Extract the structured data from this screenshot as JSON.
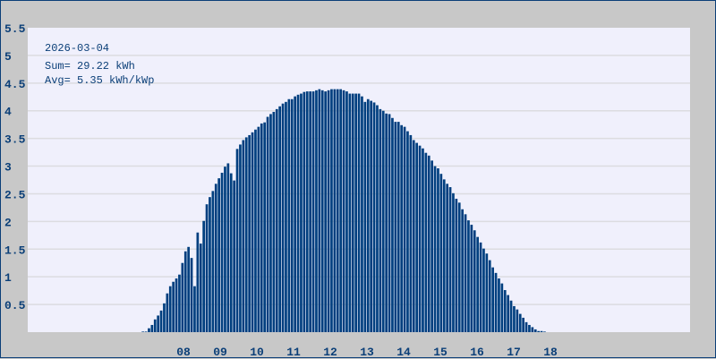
{
  "chart_data": {
    "type": "bar",
    "title": "2026-03-04",
    "annotations": [
      "Sum= 29.22 kWh",
      "Avg= 5.35 kWh/kWp"
    ],
    "xlabel": "",
    "ylabel": "",
    "ylim": [
      0,
      5.5
    ],
    "yticks": [
      "0.5",
      "1",
      "1.5",
      "2",
      "2.5",
      "3",
      "3.5",
      "4",
      "4.5",
      "5",
      "5.5"
    ],
    "xticks": [
      "08",
      "09",
      "10",
      "11",
      "12",
      "13",
      "14",
      "15",
      "16",
      "17",
      "18"
    ],
    "grid": true,
    "bar_color": "#003f7f",
    "plot_background": "#f0f0fc",
    "values": [
      0.01,
      0.01,
      0.07,
      0.13,
      0.23,
      0.3,
      0.39,
      0.52,
      0.7,
      0.83,
      0.91,
      0.97,
      1.04,
      1.25,
      1.46,
      1.54,
      1.34,
      0.83,
      1.8,
      1.6,
      2.01,
      2.31,
      2.44,
      2.55,
      2.68,
      2.78,
      2.88,
      2.99,
      3.05,
      2.87,
      2.74,
      3.31,
      3.39,
      3.47,
      3.52,
      3.56,
      3.61,
      3.66,
      3.71,
      3.77,
      3.79,
      3.89,
      3.94,
      3.98,
      4.03,
      4.08,
      4.13,
      4.16,
      4.21,
      4.21,
      4.26,
      4.29,
      4.31,
      4.34,
      4.35,
      4.35,
      4.35,
      4.37,
      4.39,
      4.37,
      4.35,
      4.37,
      4.39,
      4.39,
      4.39,
      4.39,
      4.37,
      4.35,
      4.31,
      4.31,
      4.31,
      4.31,
      4.26,
      4.16,
      4.21,
      4.18,
      4.15,
      4.1,
      4.03,
      4.0,
      3.95,
      3.94,
      3.87,
      3.8,
      3.8,
      3.74,
      3.71,
      3.63,
      3.56,
      3.47,
      3.42,
      3.37,
      3.32,
      3.24,
      3.19,
      3.1,
      3.0,
      2.96,
      2.86,
      2.76,
      2.68,
      2.62,
      2.51,
      2.41,
      2.34,
      2.22,
      2.13,
      2.02,
      1.94,
      1.84,
      1.72,
      1.62,
      1.51,
      1.42,
      1.3,
      1.17,
      1.07,
      0.97,
      0.88,
      0.76,
      0.67,
      0.57,
      0.47,
      0.41,
      0.33,
      0.26,
      0.18,
      0.13,
      0.09,
      0.05,
      0.02,
      0.02,
      0.01
    ]
  }
}
